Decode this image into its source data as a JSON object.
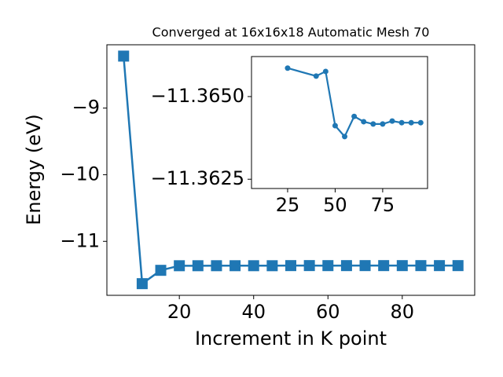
{
  "chart_data": [
    {
      "type": "line",
      "title": "Converged at 16x16x18 Automatic Mesh 70",
      "x_label": "Increment in K point",
      "y_label": "Energy (eV)",
      "x": [
        5,
        10,
        15,
        20,
        25,
        30,
        35,
        40,
        45,
        50,
        55,
        60,
        65,
        70,
        75,
        80,
        85,
        90,
        95
      ],
      "series": [
        {
          "color": "#1f77b4",
          "marker": "square",
          "values": [
            -8.22,
            -11.635,
            -11.435,
            -11.366,
            -11.36586,
            -11.3657,
            -11.3656,
            -11.36562,
            -11.36576,
            -11.36412,
            -11.36379,
            -11.3644,
            -11.36424,
            -11.36417,
            -11.36417,
            -11.36426,
            -11.36421,
            -11.36421,
            -11.36421
          ]
        }
      ],
      "xlim": [
        0.5,
        99.5
      ],
      "ylim": [
        -11.81,
        -8.05
      ],
      "xticks": [
        20,
        40,
        60,
        80
      ],
      "yticks": [
        {
          "value": -9,
          "label": "−9"
        },
        {
          "value": -10,
          "label": "−10"
        },
        {
          "value": -11,
          "label": "−11"
        }
      ]
    },
    {
      "type": "line",
      "inset": true,
      "x": [
        25,
        40,
        45,
        50,
        55,
        60,
        65,
        70,
        75,
        80,
        85,
        90,
        95
      ],
      "series": [
        {
          "color": "#1f77b4",
          "marker": "circle",
          "values": [
            -11.36586,
            -11.36562,
            -11.36576,
            -11.36412,
            -11.36379,
            -11.3644,
            -11.36424,
            -11.36417,
            -11.36417,
            -11.36426,
            -11.36421,
            -11.36421,
            -11.36421
          ]
        }
      ],
      "xlim": [
        6,
        98.6
      ],
      "ylim": [
        -11.36222,
        -11.36621
      ],
      "y_inverted": true,
      "xticks": [
        25,
        50,
        75
      ],
      "yticks": [
        {
          "value": -11.365,
          "label": "−11.3650"
        },
        {
          "value": -11.3625,
          "label": "−11.3625"
        }
      ]
    }
  ]
}
